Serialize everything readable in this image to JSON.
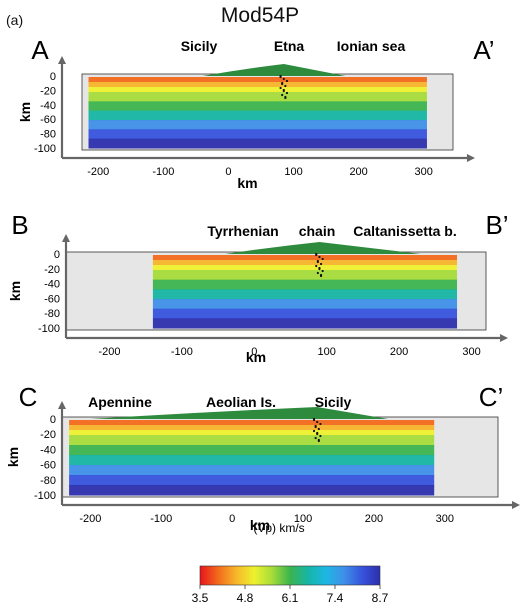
{
  "figure": {
    "panel_label": "(a)",
    "title": "Mod54P"
  },
  "chart_data": [
    {
      "type": "heatmap",
      "section_start": "A",
      "section_end": "A’",
      "annotations": [
        "Sicily",
        "Etna",
        "Ionian sea"
      ],
      "xlabel": "km",
      "ylabel": "km",
      "xticks": [
        -200,
        -100,
        0,
        100,
        200,
        300
      ],
      "yticks": [
        0,
        -20,
        -40,
        -60,
        -80,
        -100
      ],
      "xlim": [
        -225,
        345
      ],
      "ylim": [
        -105,
        10
      ]
    },
    {
      "type": "heatmap",
      "section_start": "B",
      "section_end": "B’",
      "annotations": [
        "Tyrrhenian",
        "chain",
        "Caltanissetta b."
      ],
      "xlabel": "km",
      "ylabel": "km",
      "xticks": [
        -200,
        -100,
        0,
        100,
        200,
        300
      ],
      "yticks": [
        0,
        -20,
        -40,
        -60,
        -80,
        -100
      ],
      "xlim": [
        -260,
        320
      ],
      "ylim": [
        -105,
        10
      ]
    },
    {
      "type": "heatmap",
      "section_start": "C",
      "section_end": "C’",
      "annotations": [
        "Apennine",
        "Aeolian Is.",
        "Sicily"
      ],
      "xlabel": "km",
      "ylabel": "km",
      "xticks": [
        -200,
        -100,
        0,
        100,
        200,
        300
      ],
      "yticks": [
        0,
        -20,
        -40,
        -60,
        -80,
        -100
      ],
      "xlim": [
        -240,
        375
      ],
      "ylim": [
        -105,
        10
      ]
    }
  ],
  "colorbar": {
    "label": "(Vp) km/s",
    "ticks": [
      "3.5",
      "4.8",
      "6.1",
      "7.4",
      "8.7"
    ],
    "range": [
      3.5,
      8.7
    ],
    "colors": [
      "#e8141b",
      "#f26a1c",
      "#f7b52a",
      "#eef12e",
      "#a7dc3a",
      "#3cb44e",
      "#16b5a4",
      "#1eb7e4",
      "#3f8fe8",
      "#3753dc",
      "#2d2fae"
    ]
  }
}
